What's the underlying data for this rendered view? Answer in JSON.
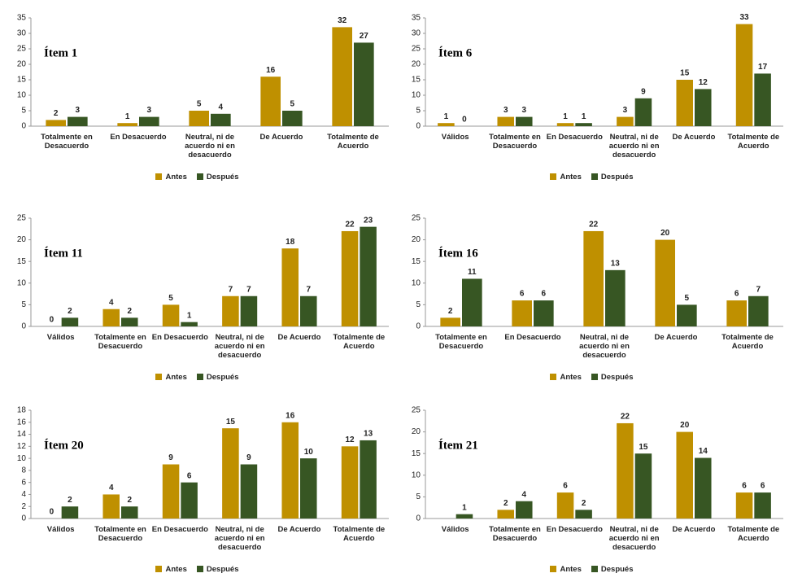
{
  "chart_data": [
    {
      "type": "bar",
      "title": "Ítem 1",
      "categories": [
        "Totalmente en Desacuerdo",
        "En Desacuerdo",
        "Neutral, ni de acuerdo ni en desacuerdo",
        "De Acuerdo",
        "Totalmente de Acuerdo"
      ],
      "series": [
        {
          "name": "Antes",
          "color": "#bf9000",
          "values": [
            2,
            1,
            5,
            16,
            32
          ]
        },
        {
          "name": "Después",
          "color": "#375623",
          "values": [
            3,
            3,
            4,
            5,
            27
          ]
        }
      ],
      "ylim": [
        0,
        35
      ],
      "yticks": [
        0,
        5,
        10,
        15,
        20,
        25,
        30,
        35
      ],
      "legend": "bottom"
    },
    {
      "type": "bar",
      "title": "Ítem 6",
      "categories": [
        "Válidos",
        "Totalmente en Desacuerdo",
        "En Desacuerdo",
        "Neutral, ni de acuerdo ni en desacuerdo",
        "De Acuerdo",
        "Totalmente de Acuerdo"
      ],
      "series": [
        {
          "name": "Antes",
          "color": "#bf9000",
          "values": [
            1,
            3,
            1,
            3,
            15,
            33
          ]
        },
        {
          "name": "Después",
          "color": "#375623",
          "values": [
            0,
            3,
            1,
            9,
            12,
            17
          ]
        }
      ],
      "ylim": [
        0,
        35
      ],
      "yticks": [
        0,
        5,
        10,
        15,
        20,
        25,
        30,
        35
      ],
      "legend": "bottom"
    },
    {
      "type": "bar",
      "title": "Ítem 11",
      "categories": [
        "Válidos",
        "Totalmente en Desacuerdo",
        "En Desacuerdo",
        "Neutral, ni de acuerdo ni en desacuerdo",
        "De Acuerdo",
        "Totalmente de Acuerdo"
      ],
      "series": [
        {
          "name": "Antes",
          "color": "#bf9000",
          "values": [
            0,
            4,
            5,
            7,
            18,
            22
          ]
        },
        {
          "name": "Después",
          "color": "#375623",
          "values": [
            2,
            2,
            1,
            7,
            7,
            23
          ]
        }
      ],
      "ylim": [
        0,
        25
      ],
      "yticks": [
        0,
        5,
        10,
        15,
        20,
        25
      ],
      "legend": "bottom"
    },
    {
      "type": "bar",
      "title": "Ítem 16",
      "categories": [
        "Totalmente en Desacuerdo",
        "En Desacuerdo",
        "Neutral, ni de acuerdo ni en desacuerdo",
        "De Acuerdo",
        "Totalmente de Acuerdo"
      ],
      "series": [
        {
          "name": "Antes",
          "color": "#bf9000",
          "values": [
            2,
            6,
            22,
            20,
            6
          ]
        },
        {
          "name": "Después",
          "color": "#375623",
          "values": [
            11,
            6,
            13,
            5,
            7
          ]
        }
      ],
      "ylim": [
        0,
        25
      ],
      "yticks": [
        0,
        5,
        10,
        15,
        20,
        25
      ],
      "legend": "bottom"
    },
    {
      "type": "bar",
      "title": "Ítem 20",
      "categories": [
        "Válidos",
        "Totalmente en Desacuerdo",
        "En Desacuerdo",
        "Neutral, ni de acuerdo ni en desacuerdo",
        "De Acuerdo",
        "Totalmente de Acuerdo"
      ],
      "series": [
        {
          "name": "Antes",
          "color": "#bf9000",
          "values": [
            0,
            4,
            9,
            15,
            16,
            12
          ]
        },
        {
          "name": "Después",
          "color": "#375623",
          "values": [
            2,
            2,
            6,
            9,
            10,
            13
          ]
        }
      ],
      "ylim": [
        0,
        18
      ],
      "yticks": [
        0,
        2,
        4,
        6,
        8,
        10,
        12,
        14,
        16,
        18
      ],
      "legend": "bottom"
    },
    {
      "type": "bar",
      "title": "Ítem 21",
      "categories": [
        "Válidos",
        "Totalmente en Desacuerdo",
        "En Desacuerdo",
        "Neutral, ni de acuerdo ni en desacuerdo",
        "De Acuerdo",
        "Totalmente de Acuerdo"
      ],
      "series": [
        {
          "name": "Antes",
          "color": "#bf9000",
          "values": [
            null,
            2,
            6,
            22,
            20,
            6
          ]
        },
        {
          "name": "Después",
          "color": "#375623",
          "values": [
            1,
            4,
            2,
            15,
            14,
            6
          ]
        }
      ],
      "ylim": [
        0,
        25
      ],
      "yticks": [
        0,
        5,
        10,
        15,
        20,
        25
      ],
      "legend": "bottom"
    }
  ]
}
